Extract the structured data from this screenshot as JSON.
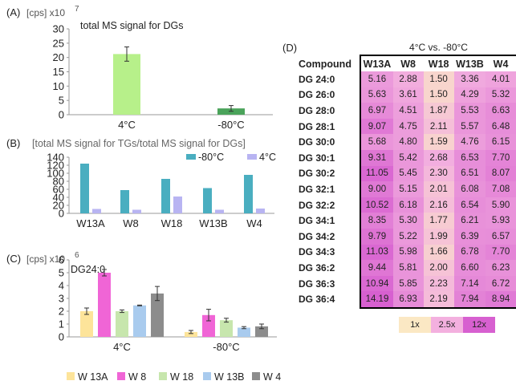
{
  "colors": {
    "panelA_4C": "#b7f08a",
    "panelA_m80C": "#4aa35a",
    "panelB_m80C": "#4aaec0",
    "panelB_4C": "#b8b4f2",
    "W13A": "#fde49a",
    "W8": "#f065d6",
    "W18": "#c7e6ad",
    "W13B": "#a9cbee",
    "W4": "#8c8c8c",
    "heat_low": "#fbe8c4",
    "heat_mid": "#f3b0df",
    "heat_high": "#d760d0"
  },
  "chart_data": [
    {
      "panel": "(A)",
      "type": "bar",
      "title": "total MS signal for DGs",
      "ylabel": "[cps]",
      "y_multiplier": "x10",
      "y_exponent": "7",
      "categories": [
        "4°C",
        "-80°C"
      ],
      "values": [
        21.2,
        2.2
      ],
      "errors": [
        2.5,
        1.0
      ],
      "ylim": [
        0,
        30
      ],
      "yticks": [
        "0",
        "5",
        "10",
        "15",
        "20",
        "25",
        "30"
      ]
    },
    {
      "panel": "(B)",
      "type": "bar",
      "title": "[total MS signal for TGs/total MS signal for DGs]",
      "categories": [
        "W13A",
        "W8",
        "W18",
        "W13B",
        "W4"
      ],
      "series": [
        {
          "name": "-80°C",
          "values": [
            124,
            58,
            86,
            63,
            96
          ]
        },
        {
          "name": "4°C",
          "values": [
            11,
            9,
            42,
            9,
            12
          ]
        }
      ],
      "ylim": [
        0,
        140
      ],
      "yticks": [
        "0",
        "20",
        "40",
        "60",
        "80",
        "100",
        "120",
        "140"
      ],
      "legend": "top-right"
    },
    {
      "panel": "(C)",
      "type": "bar",
      "title": "DG24:0",
      "ylabel": "[cps]",
      "y_multiplier": "x10",
      "y_exponent": "6",
      "categories": [
        "4°C",
        "-80°C"
      ],
      "series": [
        {
          "name": "W 13A",
          "values": [
            2.0,
            0.38
          ],
          "errors": [
            0.25,
            0.12
          ]
        },
        {
          "name": "W 8",
          "values": [
            5.0,
            1.7
          ],
          "errors": [
            0.25,
            0.45
          ]
        },
        {
          "name": "W 18",
          "values": [
            2.0,
            1.3
          ],
          "errors": [
            0.1,
            0.15
          ]
        },
        {
          "name": "W 13B",
          "values": [
            2.45,
            0.72
          ],
          "errors": [
            0.03,
            0.08
          ]
        },
        {
          "name": "W 4",
          "values": [
            3.38,
            0.82
          ],
          "errors": [
            0.55,
            0.18
          ]
        }
      ],
      "ylim": [
        0,
        6
      ],
      "yticks": [
        "0",
        "1",
        "2",
        "3",
        "4",
        "5",
        "6"
      ],
      "legend": "bottom"
    },
    {
      "panel": "(D)",
      "type": "heatmap",
      "title": "4°C vs. -80°C",
      "row_header": "Compound",
      "columns": [
        "W13A",
        "W8",
        "W18",
        "W13B",
        "W4"
      ],
      "rows": [
        {
          "compound": "DG 24:0",
          "values": [
            "5.16",
            "2.88",
            "1.50",
            "3.36",
            "4.01"
          ]
        },
        {
          "compound": "DG 26:0",
          "values": [
            "5.63",
            "3.61",
            "1.50",
            "4.29",
            "5.32"
          ]
        },
        {
          "compound": "DG 28:0",
          "values": [
            "6.97",
            "4.51",
            "1.87",
            "5.53",
            "6.63"
          ]
        },
        {
          "compound": "DG 28:1",
          "values": [
            "9.07",
            "4.75",
            "2.11",
            "5.57",
            "6.48"
          ]
        },
        {
          "compound": "DG 30:0",
          "values": [
            "5.68",
            "4.80",
            "1.59",
            "4.76",
            "6.15"
          ]
        },
        {
          "compound": "DG 30:1",
          "values": [
            "9.31",
            "5.42",
            "2.68",
            "6.53",
            "7.70"
          ]
        },
        {
          "compound": "DG 30:2",
          "values": [
            "11.05",
            "5.45",
            "2.30",
            "6.51",
            "8.07"
          ]
        },
        {
          "compound": "DG 32:1",
          "values": [
            "9.00",
            "5.15",
            "2.01",
            "6.08",
            "7.08"
          ]
        },
        {
          "compound": "DG 32:2",
          "values": [
            "10.52",
            "6.18",
            "2.16",
            "6.54",
            "5.90"
          ]
        },
        {
          "compound": "DG 34:1",
          "values": [
            "8.35",
            "5.30",
            "1.77",
            "6.21",
            "5.93"
          ]
        },
        {
          "compound": "DG 34:2",
          "values": [
            "9.79",
            "5.22",
            "1.99",
            "6.39",
            "6.57"
          ]
        },
        {
          "compound": "DG 34:3",
          "values": [
            "11.03",
            "5.98",
            "1.66",
            "6.78",
            "7.70"
          ]
        },
        {
          "compound": "DG 36:2",
          "values": [
            "9.44",
            "5.81",
            "2.00",
            "6.60",
            "6.23"
          ]
        },
        {
          "compound": "DG 36:3",
          "values": [
            "10.94",
            "5.85",
            "2.23",
            "7.14",
            "6.72"
          ]
        },
        {
          "compound": "DG 36:4",
          "values": [
            "14.19",
            "6.93",
            "2.19",
            "7.94",
            "8.94"
          ]
        }
      ],
      "scale_labels": [
        "1x",
        "2.5x",
        "12x"
      ]
    }
  ]
}
